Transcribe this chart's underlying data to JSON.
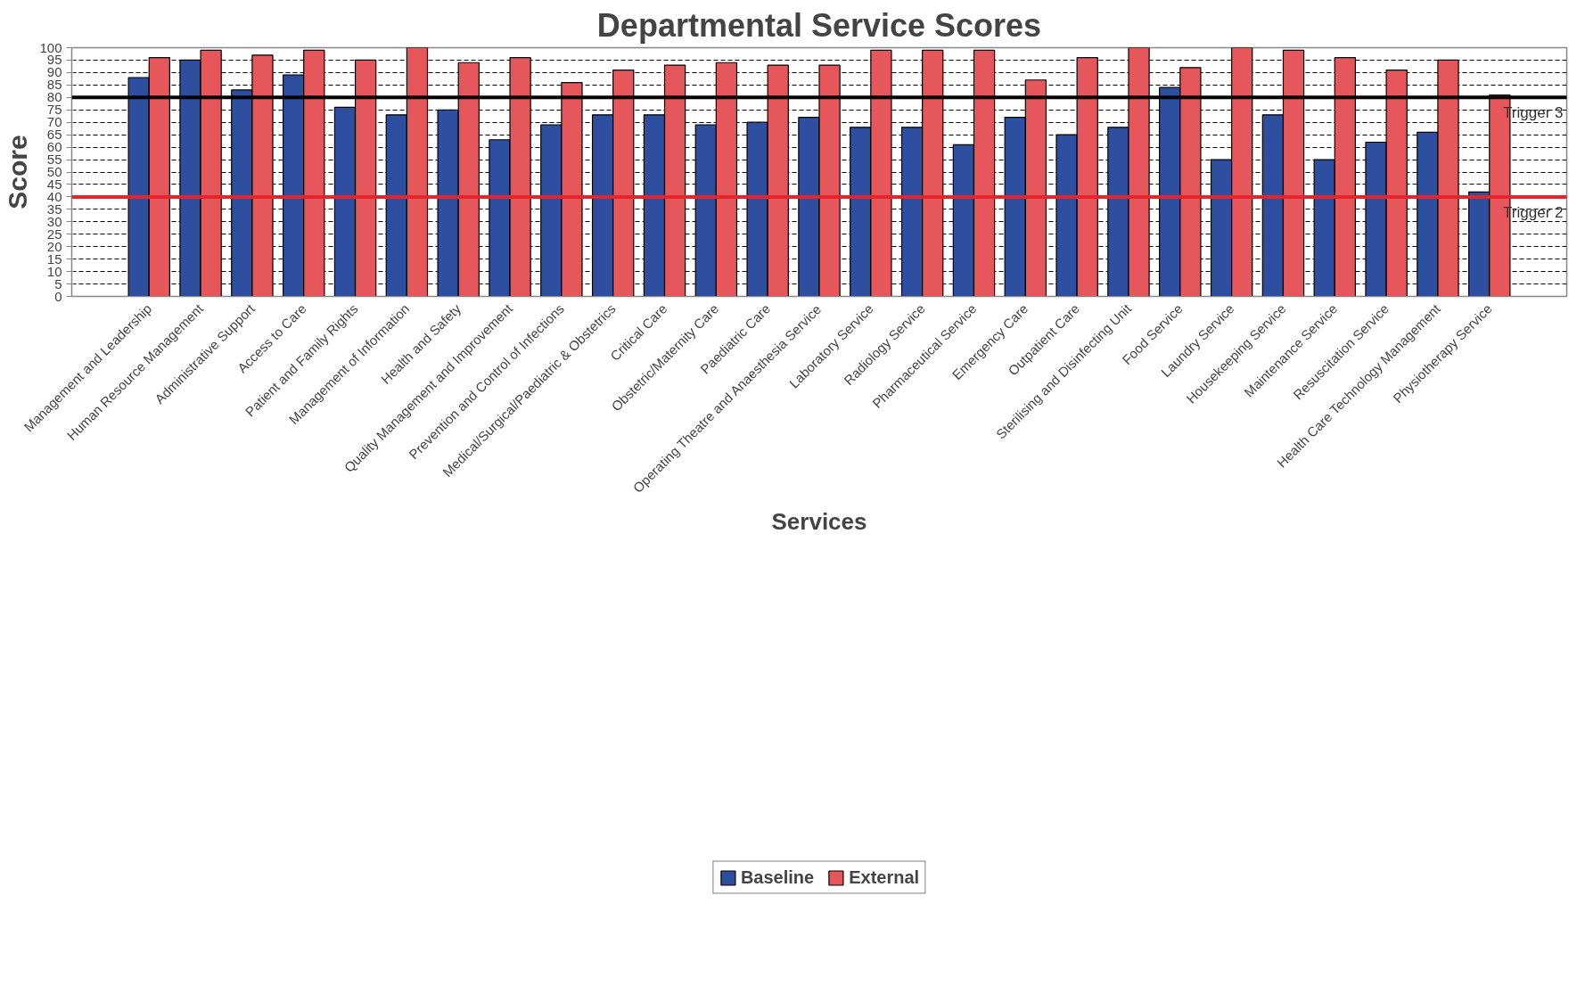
{
  "chart_data": {
    "type": "bar",
    "title": "Departmental Service Scores",
    "xlabel": "Services",
    "ylabel": "Score",
    "categories": [
      "Management and Leadership",
      "Human Resource Management",
      "Administrative Support",
      "Access to Care",
      "Patient and Family Rights",
      "Management of Information",
      "Health and Safety",
      "Quality Management and Improvement",
      "Prevention and Control of Infections",
      "Medical/Surgical/Paediatric & Obstetrics",
      "Critical Care",
      "Obstetric/Maternity Care",
      "Paediatric Care",
      "Operating Theatre and Anaesthesia Service",
      "Laboratory Service",
      "Radiology Service",
      "Pharmaceutical Service",
      "Emergency Care",
      "Outpatient Care",
      "Sterilising and Disinfecting Unit",
      "Food Service",
      "Laundry Service",
      "Housekeeping Service",
      "Maintenance Service",
      "Resuscitation Service",
      "Health Care Technology Management",
      "Physiotherapy Service"
    ],
    "series": [
      {
        "name": "Baseline",
        "color": "#2e4fa0",
        "values": [
          88,
          95,
          83,
          89,
          76,
          73,
          75,
          63,
          69,
          73,
          73,
          69,
          70,
          72,
          68,
          68,
          61,
          72,
          65,
          68,
          84,
          55,
          73,
          55,
          62,
          66,
          42
        ]
      },
      {
        "name": "External",
        "color": "#e5575b",
        "values": [
          96,
          99,
          97,
          99,
          95,
          100,
          94,
          96,
          86,
          91,
          93,
          94,
          93,
          93,
          99,
          99,
          99,
          87,
          96,
          100,
          92,
          100,
          99,
          96,
          91,
          95,
          81
        ]
      }
    ],
    "ylim": [
      0,
      100
    ],
    "yticks": [
      0,
      5,
      10,
      15,
      20,
      25,
      30,
      35,
      40,
      45,
      50,
      55,
      60,
      65,
      70,
      75,
      80,
      85,
      90,
      95,
      100
    ],
    "ref_lines": [
      {
        "axis": "y",
        "value": 80,
        "label": "Trigger 3",
        "color": "#000000",
        "line_style": "solid"
      },
      {
        "axis": "y",
        "value": 40,
        "label": "Trigger 2",
        "color": "#e8232a",
        "line_style": "solid"
      }
    ],
    "grid": "y",
    "legend": "bottom"
  }
}
